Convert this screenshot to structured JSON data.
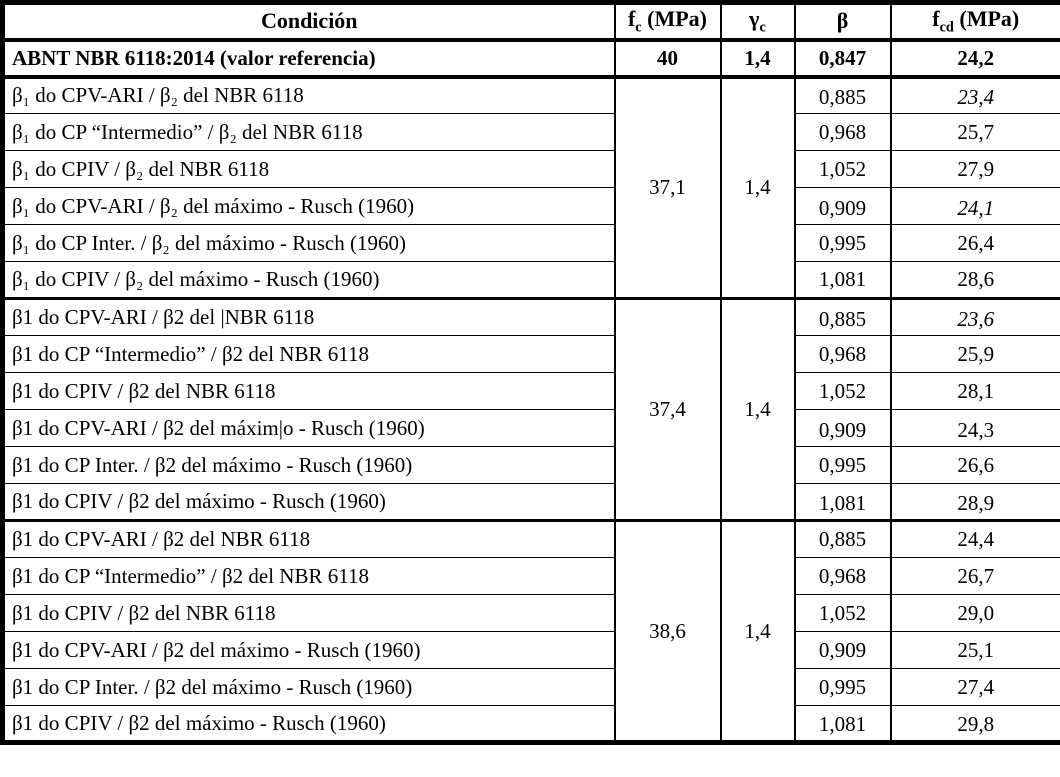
{
  "table": {
    "headers": [
      {
        "pre": "Condición",
        "sub": "",
        "post": ""
      },
      {
        "pre": "f",
        "sub": "c",
        "post": " (MPa)"
      },
      {
        "pre": "γ",
        "sub": "c",
        "post": ""
      },
      {
        "pre": "β",
        "sub": "",
        "post": ""
      },
      {
        "pre": "f",
        "sub": "cd",
        "post": " (MPa)"
      }
    ],
    "reference": {
      "condition": "ABNT NBR 6118:2014 (valor referencia)",
      "fc": "40",
      "gamma": "1,4",
      "beta": "0,847",
      "fcd": "24,2"
    },
    "groups": [
      {
        "fc": "37,1",
        "gamma": "1,4",
        "rows": [
          {
            "condition": "β₁ do CPV-ARI / β₂ del NBR 6118",
            "beta": "0,885",
            "fcd": "23,4",
            "italic": true,
            "low": true
          },
          {
            "condition": "β₁ do CP “Intermedio” / β₂ del NBR 6118",
            "beta": "0,968",
            "fcd": "25,7"
          },
          {
            "condition": "β₁ do CPIV / β₂ del NBR 6118",
            "beta": "1,052",
            "fcd": "27,9"
          },
          {
            "condition": "β₁ do CPV-ARI / β₂ del máximo - Rusch (1960)",
            "beta": "0,909",
            "fcd": "24,1",
            "italic": true,
            "low": true
          },
          {
            "condition": "β₁ do CP Inter. / β₂ del máximo - Rusch (1960)",
            "beta": "0,995",
            "fcd": "26,4"
          },
          {
            "condition": "β₁ do CPIV / β₂ del máximo - Rusch (1960)",
            "beta": "1,081",
            "fcd": "28,6"
          }
        ]
      },
      {
        "fc": "37,4",
        "gamma": "1,4",
        "rows": [
          {
            "condition": "β1 do CPV-ARI / β2 del |NBR 6118",
            "beta": "0,885",
            "fcd": "23,6",
            "italic": true,
            "low": true
          },
          {
            "condition": "β1 do CP “Intermedio” / β2 del NBR 6118",
            "beta": "0,968",
            "fcd": "25,9"
          },
          {
            "condition": "β1 do CPIV / β2 del NBR 6118",
            "beta": "1,052",
            "fcd": "28,1"
          },
          {
            "condition": "β1 do CPV-ARI / β2 del máxim|o - Rusch (1960)",
            "beta": "0,909",
            "fcd": "24,3",
            "low": true
          },
          {
            "condition": "β1 do CP Inter. / β2 del máximo - Rusch (1960)",
            "beta": "0,995",
            "fcd": "26,6"
          },
          {
            "condition": "β1 do CPIV / β2 del máximo - Rusch (1960)",
            "beta": "1,081",
            "fcd": "28,9",
            "low": true
          }
        ]
      },
      {
        "fc": "38,6",
        "gamma": "1,4",
        "rows": [
          {
            "condition": "β1 do CPV-ARI / β2 del NBR 6118",
            "beta": "0,885",
            "fcd": "24,4"
          },
          {
            "condition": "β1 do CP “Intermedio” / β2 del NBR 6118",
            "beta": "0,968",
            "fcd": "26,7"
          },
          {
            "condition": "β1 do CPIV / β2 del NBR 6118",
            "beta": "1,052",
            "fcd": "29,0"
          },
          {
            "condition": "β1 do CPV-ARI / β2 del máximo - Rusch (1960)",
            "beta": "0,909",
            "fcd": "25,1"
          },
          {
            "condition": "β1 do CP Inter. / β2 del máximo - Rusch (1960)",
            "beta": "0,995",
            "fcd": "27,4"
          },
          {
            "condition": "β1 do CPIV / β2 del máximo - Rusch (1960)",
            "beta": "1,081",
            "fcd": "29,8",
            "low": true
          }
        ]
      }
    ]
  }
}
